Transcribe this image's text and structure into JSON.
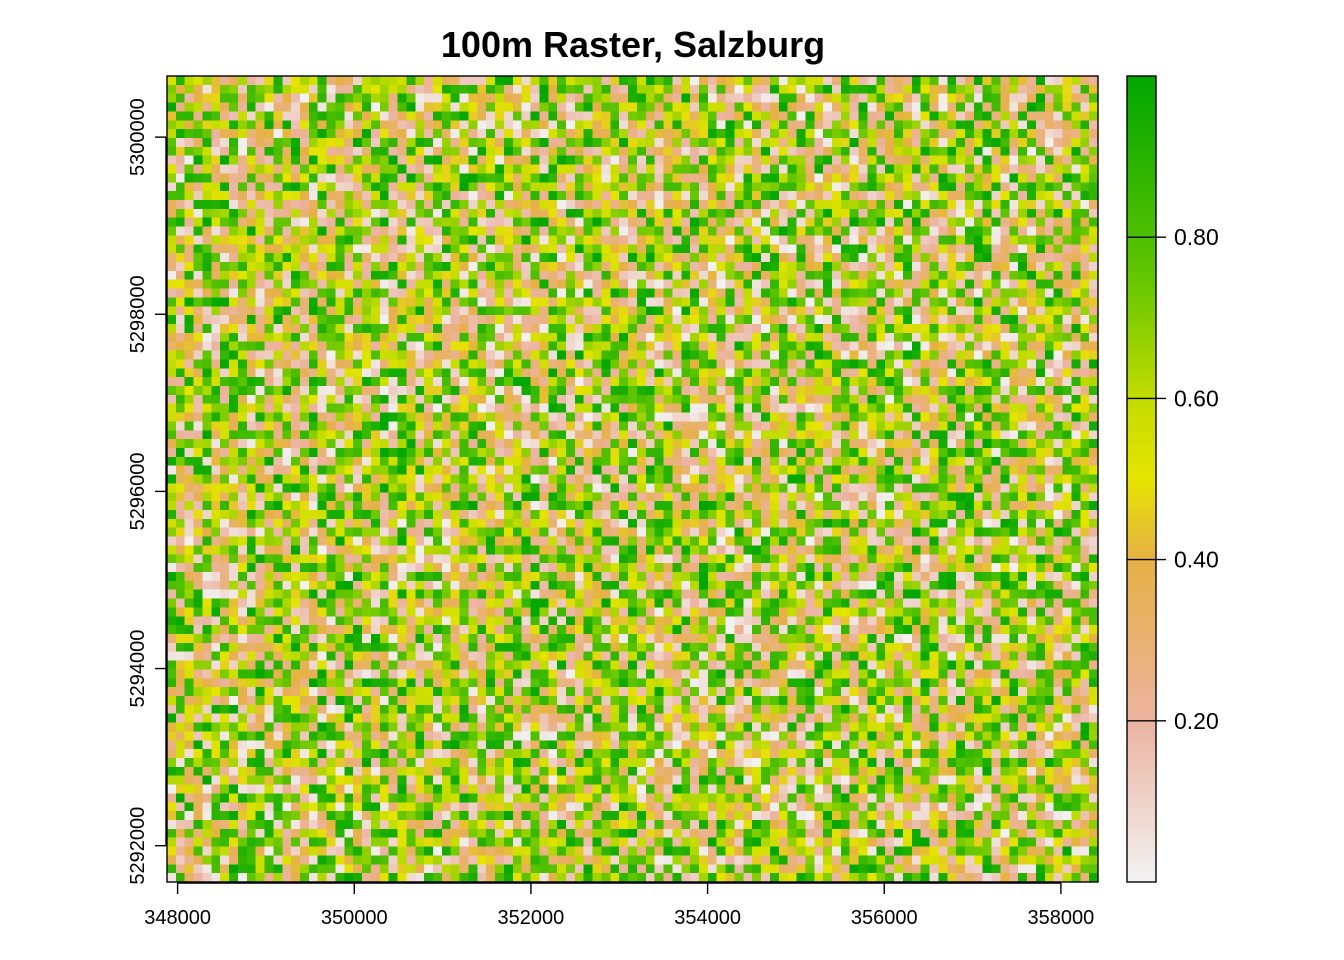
{
  "chart_data": {
    "type": "heatmap",
    "title": "100m Raster, Salzburg",
    "xlabel": "",
    "ylabel": "",
    "xlim": [
      347880,
      358420
    ],
    "ylim": [
      5291590,
      5300690
    ],
    "cell_size": 100,
    "value_range": [
      0,
      1
    ],
    "x_ticks": [
      {
        "value": 348000,
        "label": "348000"
      },
      {
        "value": 350000,
        "label": "350000"
      },
      {
        "value": 352000,
        "label": "352000"
      },
      {
        "value": 354000,
        "label": "354000"
      },
      {
        "value": 356000,
        "label": "356000"
      },
      {
        "value": 358000,
        "label": "358000"
      }
    ],
    "y_ticks": [
      {
        "value": 5292000,
        "label": "5292000"
      },
      {
        "value": 5294000,
        "label": "5294000"
      },
      {
        "value": 5296000,
        "label": "5296000"
      },
      {
        "value": 5298000,
        "label": "5298000"
      },
      {
        "value": 5300000,
        "label": "5300000"
      }
    ],
    "legend": {
      "placement": "right",
      "ticks": [
        {
          "value": 0.2,
          "label": "0.20"
        },
        {
          "value": 0.4,
          "label": "0.40"
        },
        {
          "value": 0.6,
          "label": "0.60"
        },
        {
          "value": 0.8,
          "label": "0.80"
        }
      ]
    },
    "color_stops": [
      {
        "value": 0.0,
        "color": "#f2f2f2"
      },
      {
        "value": 0.2,
        "color": "#ecb3a0"
      },
      {
        "value": 0.4,
        "color": "#e6b145"
      },
      {
        "value": 0.5,
        "color": "#e6e400"
      },
      {
        "value": 0.6,
        "color": "#c2dc00"
      },
      {
        "value": 0.75,
        "color": "#63c600"
      },
      {
        "value": 1.0,
        "color": "#00a600"
      }
    ],
    "grid": false
  }
}
